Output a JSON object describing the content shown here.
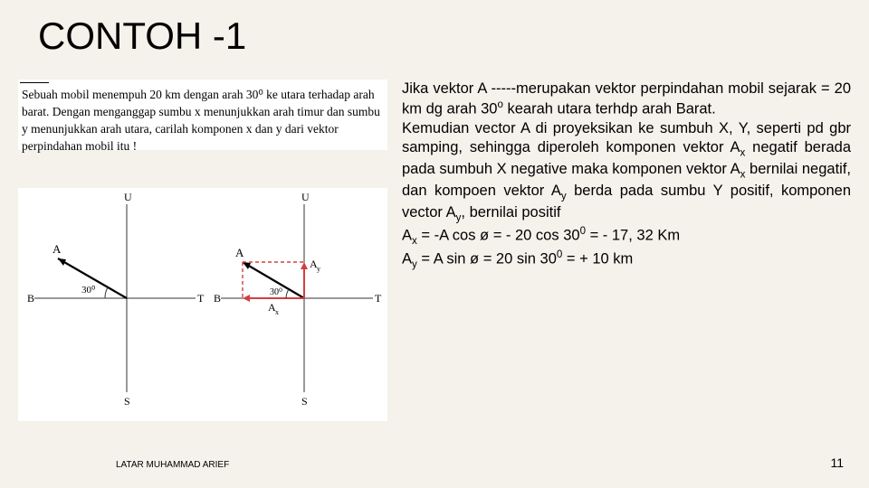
{
  "title": "CONTOH -1",
  "problem": {
    "text": "Sebuah mobil menempuh 20 km dengan arah 30⁰ ke utara terhadap arah barat. Dengan menganggap sumbu x menunjukkan arah timur dan sumbu y menunjukkan arah utara, carilah komponen x dan y dari vektor perpindahan mobil itu !"
  },
  "explain_html": "Jika vektor A -----merupakan vektor perpindahan mobil sejarak = 20 km dg arah 30<sup>o</sup> kearah utara terhdp arah Barat.<br>Kemudian vector A di proyeksikan ke sumbuh X, Y, seperti pd gbr samping, sehingga diperoleh komponen vektor A<sub>x</sub> negatif berada pada sumbuh X negative maka komponen vektor A<sub>x</sub> bernilai negatif, dan kompoen vektor A<sub>y</sub> berda pada sumbu Y positif, komponen vector A<sub>y</sub>, bernilai positif<br>A<sub>x</sub> = -A cos ø = - 20 cos 30<sup>0</sup> = - 17, 32 Km<br>A<sub>y</sub> = A sin ø = 20 sin 30<sup>0</sup> = + 10 km",
  "footer": {
    "author": "LATAR MUHAMMAD ARIEF",
    "page": "11"
  },
  "diagram_left": {
    "colors": {
      "line": "#333333",
      "bg": "#ffffff"
    },
    "axis": {
      "U": "U",
      "S": "S",
      "B": "B",
      "T": "T"
    },
    "vector_label": "A",
    "angle_label": "30⁰"
  },
  "diagram_right": {
    "colors": {
      "line": "#333333",
      "proj": "#d04040",
      "bg": "#ffffff"
    },
    "axis": {
      "U": "U",
      "S": "S",
      "B": "B",
      "T": "T"
    },
    "vector_label": "A",
    "comp_x": "Aₓ",
    "comp_y": "A_y",
    "angle_label": "30⁰"
  }
}
